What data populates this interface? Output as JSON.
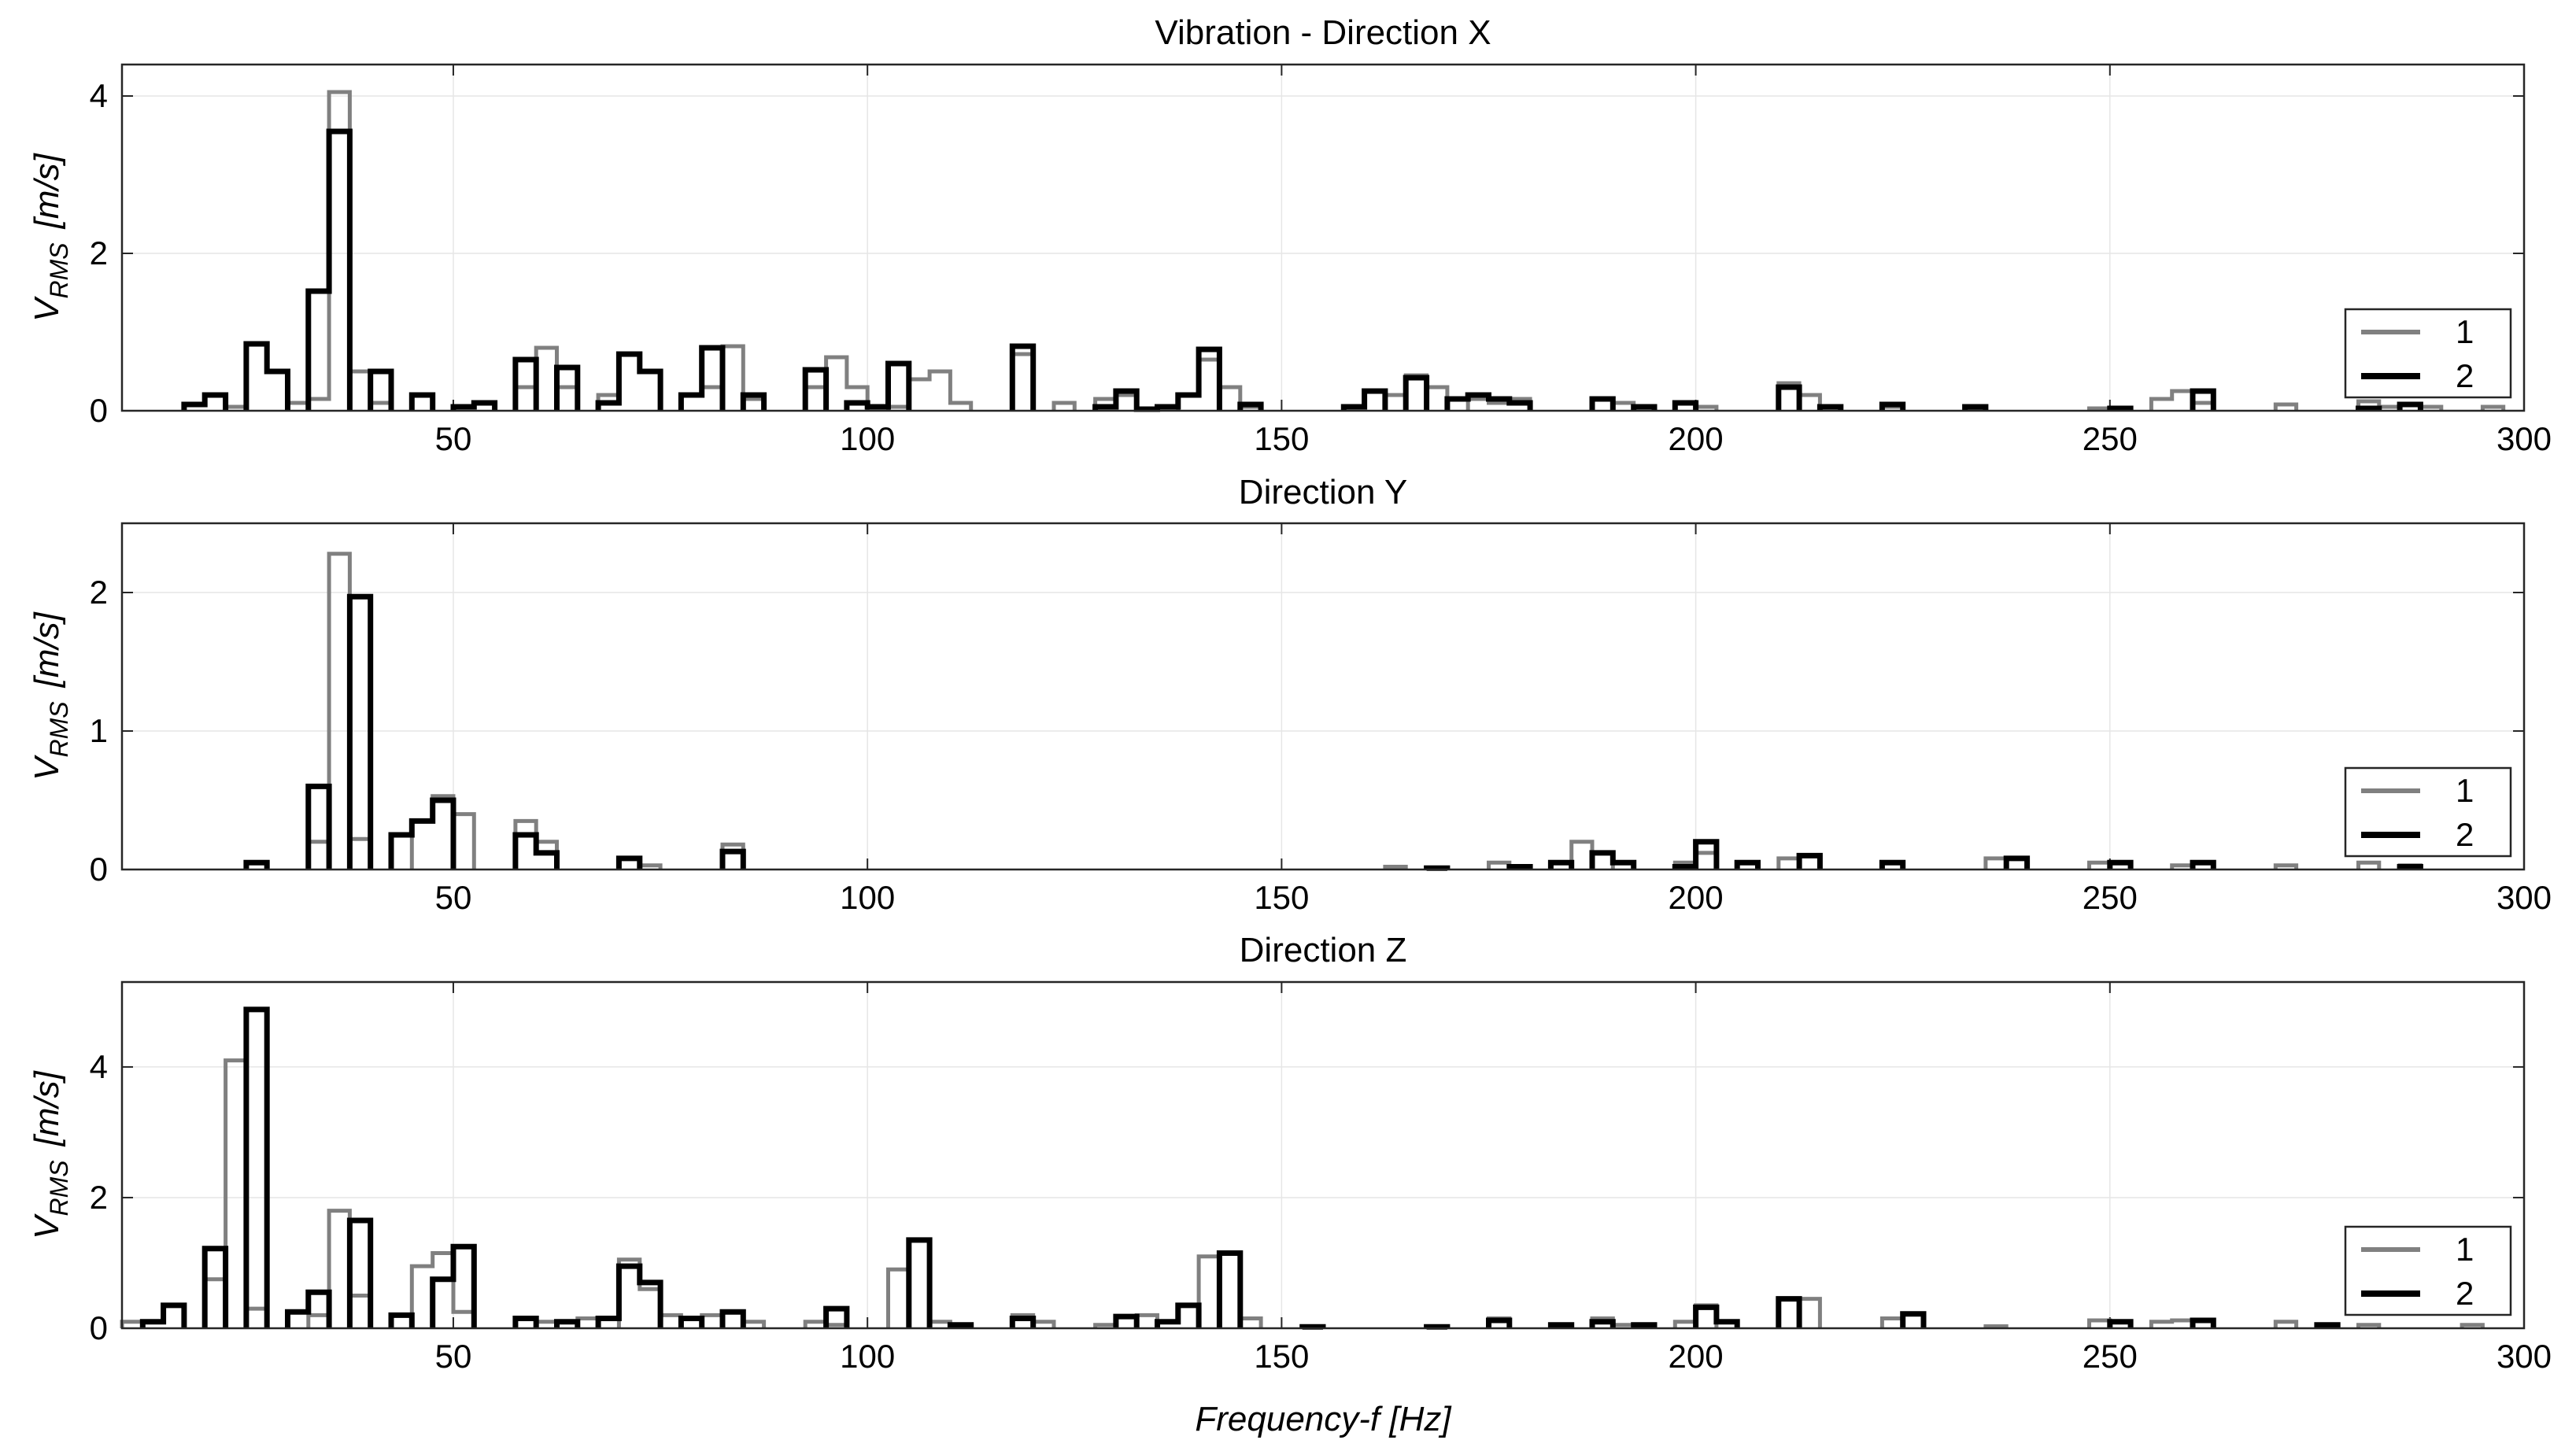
{
  "chart_data": [
    {
      "type": "line",
      "title": "Vibration - Direction X",
      "xlabel": "",
      "ylabel": "V_RMS [m/s]",
      "ylabel_main": "V",
      "ylabel_sub": "RMS",
      "ylabel_unit": "[m/s]",
      "xlim": [
        10,
        300
      ],
      "ylim": [
        0,
        4.4
      ],
      "xticks": [
        50,
        100,
        150,
        200,
        250,
        300
      ],
      "xtick_labels": [
        "50",
        "100",
        "150",
        "200",
        "250",
        "300"
      ],
      "yticks": [
        0,
        2,
        4
      ],
      "ytick_labels": [
        "0",
        "2",
        "4"
      ],
      "grid": true,
      "legend_position": "right",
      "legend": [
        "1",
        "2"
      ],
      "bin_width": 2.5,
      "series": [
        {
          "name": "1",
          "color": "#808080",
          "bins": [
            [
              22.5,
              0.05
            ],
            [
              25,
              0.85
            ],
            [
              27.5,
              0.5
            ],
            [
              30,
              0.1
            ],
            [
              32.5,
              0.15
            ],
            [
              35,
              4.05
            ],
            [
              37.5,
              0.5
            ],
            [
              40,
              0.1
            ],
            [
              57.5,
              0.3
            ],
            [
              60,
              0.8
            ],
            [
              62.5,
              0.3
            ],
            [
              67.5,
              0.2
            ],
            [
              70,
              0.72
            ],
            [
              72.5,
              0.5
            ],
            [
              77.5,
              0.2
            ],
            [
              80,
              0.3
            ],
            [
              82.5,
              0.82
            ],
            [
              85,
              0.15
            ],
            [
              92.5,
              0.3
            ],
            [
              95,
              0.68
            ],
            [
              97.5,
              0.3
            ],
            [
              102.5,
              0.05
            ],
            [
              105,
              0.4
            ],
            [
              107.5,
              0.5
            ],
            [
              110,
              0.1
            ],
            [
              117.5,
              0.72
            ],
            [
              122.5,
              0.1
            ],
            [
              127.5,
              0.15
            ],
            [
              130,
              0.2
            ],
            [
              137.5,
              0.2
            ],
            [
              140,
              0.65
            ],
            [
              142.5,
              0.3
            ],
            [
              145,
              0.05
            ],
            [
              162.5,
              0.2
            ],
            [
              165,
              0.45
            ],
            [
              167.5,
              0.3
            ],
            [
              172.5,
              0.15
            ],
            [
              175,
              0.1
            ],
            [
              177.5,
              0.15
            ],
            [
              187.5,
              0.15
            ],
            [
              190,
              0.1
            ],
            [
              200,
              0.05
            ],
            [
              210,
              0.35
            ],
            [
              212.5,
              0.2
            ],
            [
              222.5,
              0.05
            ],
            [
              232.5,
              0.03
            ],
            [
              247.5,
              0.03
            ],
            [
              255,
              0.15
            ],
            [
              257.5,
              0.25
            ],
            [
              260,
              0.1
            ],
            [
              270,
              0.08
            ],
            [
              280,
              0.12
            ],
            [
              282.5,
              0.05
            ],
            [
              287.5,
              0.05
            ],
            [
              295,
              0.05
            ]
          ]
        },
        {
          "name": "2",
          "color": "#000000",
          "bins": [
            [
              17.5,
              0.08
            ],
            [
              20,
              0.2
            ],
            [
              25,
              0.85
            ],
            [
              27.5,
              0.5
            ],
            [
              32.5,
              1.52
            ],
            [
              35,
              3.55
            ],
            [
              40,
              0.5
            ],
            [
              45,
              0.2
            ],
            [
              50,
              0.05
            ],
            [
              52.5,
              0.1
            ],
            [
              57.5,
              0.65
            ],
            [
              62.5,
              0.55
            ],
            [
              67.5,
              0.1
            ],
            [
              70,
              0.72
            ],
            [
              72.5,
              0.5
            ],
            [
              77.5,
              0.2
            ],
            [
              80,
              0.8
            ],
            [
              85,
              0.2
            ],
            [
              92.5,
              0.52
            ],
            [
              97.5,
              0.1
            ],
            [
              100,
              0.05
            ],
            [
              102.5,
              0.6
            ],
            [
              117.5,
              0.82
            ],
            [
              127.5,
              0.05
            ],
            [
              130,
              0.25
            ],
            [
              132.5,
              0.02
            ],
            [
              135,
              0.05
            ],
            [
              137.5,
              0.2
            ],
            [
              140,
              0.78
            ],
            [
              145,
              0.08
            ],
            [
              157.5,
              0.05
            ],
            [
              160,
              0.25
            ],
            [
              165,
              0.42
            ],
            [
              170,
              0.15
            ],
            [
              172.5,
              0.2
            ],
            [
              175,
              0.15
            ],
            [
              177.5,
              0.1
            ],
            [
              187.5,
              0.15
            ],
            [
              192.5,
              0.05
            ],
            [
              197.5,
              0.1
            ],
            [
              210,
              0.3
            ],
            [
              215,
              0.05
            ],
            [
              222.5,
              0.08
            ],
            [
              232.5,
              0.05
            ],
            [
              250,
              0.03
            ],
            [
              260,
              0.25
            ],
            [
              280,
              0.03
            ],
            [
              285,
              0.08
            ]
          ]
        }
      ]
    },
    {
      "type": "line",
      "title": "Direction Y",
      "xlabel": "",
      "ylabel": "V_RMS [m/s]",
      "ylabel_main": "V",
      "ylabel_sub": "RMS",
      "ylabel_unit": "[m/s]",
      "xlim": [
        10,
        300
      ],
      "ylim": [
        0,
        2.5
      ],
      "xticks": [
        50,
        100,
        150,
        200,
        250,
        300
      ],
      "xtick_labels": [
        "50",
        "100",
        "150",
        "200",
        "250",
        "300"
      ],
      "yticks": [
        0,
        1,
        2
      ],
      "ytick_labels": [
        "0",
        "1",
        "2"
      ],
      "grid": true,
      "legend_position": "right",
      "legend": [
        "1",
        "2"
      ],
      "bin_width": 2.5,
      "series": [
        {
          "name": "1",
          "color": "#808080",
          "bins": [
            [
              25,
              0.05
            ],
            [
              32.5,
              0.2
            ],
            [
              35,
              2.28
            ],
            [
              37.5,
              0.22
            ],
            [
              45,
              0.35
            ],
            [
              47.5,
              0.53
            ],
            [
              50,
              0.4
            ],
            [
              57.5,
              0.35
            ],
            [
              60,
              0.2
            ],
            [
              72.5,
              0.03
            ],
            [
              82.5,
              0.18
            ],
            [
              162.5,
              0.02
            ],
            [
              175,
              0.05
            ],
            [
              177.5,
              0.02
            ],
            [
              185,
              0.2
            ],
            [
              187.5,
              0.12
            ],
            [
              197.5,
              0.05
            ],
            [
              200,
              0.12
            ],
            [
              210,
              0.08
            ],
            [
              222.5,
              0.05
            ],
            [
              235,
              0.08
            ],
            [
              247.5,
              0.05
            ],
            [
              257.5,
              0.03
            ],
            [
              260,
              0.05
            ],
            [
              270,
              0.03
            ],
            [
              280,
              0.05
            ],
            [
              285,
              0.03
            ]
          ]
        },
        {
          "name": "2",
          "color": "#000000",
          "bins": [
            [
              25,
              0.05
            ],
            [
              32.5,
              0.6
            ],
            [
              37.5,
              1.97
            ],
            [
              42.5,
              0.25
            ],
            [
              45,
              0.35
            ],
            [
              47.5,
              0.5
            ],
            [
              57.5,
              0.25
            ],
            [
              60,
              0.12
            ],
            [
              70,
              0.08
            ],
            [
              82.5,
              0.13
            ],
            [
              167.5,
              0.01
            ],
            [
              177.5,
              0.02
            ],
            [
              182.5,
              0.05
            ],
            [
              187.5,
              0.12
            ],
            [
              190,
              0.05
            ],
            [
              197.5,
              0.02
            ],
            [
              200,
              0.2
            ],
            [
              205,
              0.05
            ],
            [
              212.5,
              0.1
            ],
            [
              222.5,
              0.05
            ],
            [
              237.5,
              0.08
            ],
            [
              250,
              0.05
            ],
            [
              260,
              0.05
            ],
            [
              285,
              0.02
            ]
          ]
        }
      ]
    },
    {
      "type": "line",
      "title": "Direction Z",
      "xlabel": "Frequency-f [Hz]",
      "ylabel": "V_RMS [m/s]",
      "ylabel_main": "V",
      "ylabel_sub": "RMS",
      "ylabel_unit": "[m/s]",
      "xlim": [
        10,
        300
      ],
      "ylim": [
        0,
        5.3
      ],
      "xticks": [
        50,
        100,
        150,
        200,
        250,
        300
      ],
      "xtick_labels": [
        "50",
        "100",
        "150",
        "200",
        "250",
        "300"
      ],
      "yticks": [
        0,
        2,
        4
      ],
      "ytick_labels": [
        "0",
        "2",
        "4"
      ],
      "grid": true,
      "legend_position": "right",
      "legend": [
        "1",
        "2"
      ],
      "bin_width": 2.5,
      "series": [
        {
          "name": "1",
          "color": "#808080",
          "bins": [
            [
              10,
              0.1
            ],
            [
              20,
              0.75
            ],
            [
              22.5,
              4.1
            ],
            [
              25,
              0.3
            ],
            [
              32.5,
              0.2
            ],
            [
              35,
              1.8
            ],
            [
              37.5,
              0.5
            ],
            [
              45,
              0.95
            ],
            [
              47.5,
              1.15
            ],
            [
              50,
              0.25
            ],
            [
              60,
              0.1
            ],
            [
              65,
              0.15
            ],
            [
              70,
              1.05
            ],
            [
              72.5,
              0.6
            ],
            [
              75,
              0.2
            ],
            [
              80,
              0.2
            ],
            [
              85,
              0.1
            ],
            [
              92.5,
              0.1
            ],
            [
              95,
              0.05
            ],
            [
              102.5,
              0.9
            ],
            [
              107.5,
              0.1
            ],
            [
              117.5,
              0.2
            ],
            [
              120,
              0.1
            ],
            [
              127.5,
              0.05
            ],
            [
              132.5,
              0.2
            ],
            [
              140,
              1.1
            ],
            [
              145,
              0.15
            ],
            [
              175,
              0.15
            ],
            [
              187.5,
              0.15
            ],
            [
              190,
              0.05
            ],
            [
              197.5,
              0.1
            ],
            [
              200,
              0.35
            ],
            [
              212.5,
              0.45
            ],
            [
              222.5,
              0.15
            ],
            [
              235,
              0.03
            ],
            [
              247.5,
              0.12
            ],
            [
              255,
              0.1
            ],
            [
              257.5,
              0.12
            ],
            [
              270,
              0.1
            ],
            [
              280,
              0.05
            ],
            [
              292.5,
              0.05
            ]
          ]
        },
        {
          "name": "2",
          "color": "#000000",
          "bins": [
            [
              12.5,
              0.1
            ],
            [
              15,
              0.35
            ],
            [
              20,
              1.22
            ],
            [
              25,
              4.88
            ],
            [
              30,
              0.25
            ],
            [
              32.5,
              0.55
            ],
            [
              37.5,
              1.65
            ],
            [
              42.5,
              0.2
            ],
            [
              47.5,
              0.75
            ],
            [
              50,
              1.25
            ],
            [
              57.5,
              0.15
            ],
            [
              62.5,
              0.1
            ],
            [
              67.5,
              0.15
            ],
            [
              70,
              0.95
            ],
            [
              72.5,
              0.7
            ],
            [
              77.5,
              0.15
            ],
            [
              82.5,
              0.25
            ],
            [
              95,
              0.3
            ],
            [
              105,
              1.35
            ],
            [
              110,
              0.05
            ],
            [
              117.5,
              0.15
            ],
            [
              130,
              0.18
            ],
            [
              135,
              0.1
            ],
            [
              137.5,
              0.35
            ],
            [
              142.5,
              1.15
            ],
            [
              152.5,
              0.02
            ],
            [
              167.5,
              0.02
            ],
            [
              175,
              0.12
            ],
            [
              182.5,
              0.05
            ],
            [
              187.5,
              0.1
            ],
            [
              192.5,
              0.05
            ],
            [
              200,
              0.32
            ],
            [
              202.5,
              0.1
            ],
            [
              210,
              0.45
            ],
            [
              225,
              0.22
            ],
            [
              250,
              0.1
            ],
            [
              260,
              0.12
            ],
            [
              275,
              0.05
            ]
          ]
        }
      ]
    }
  ]
}
